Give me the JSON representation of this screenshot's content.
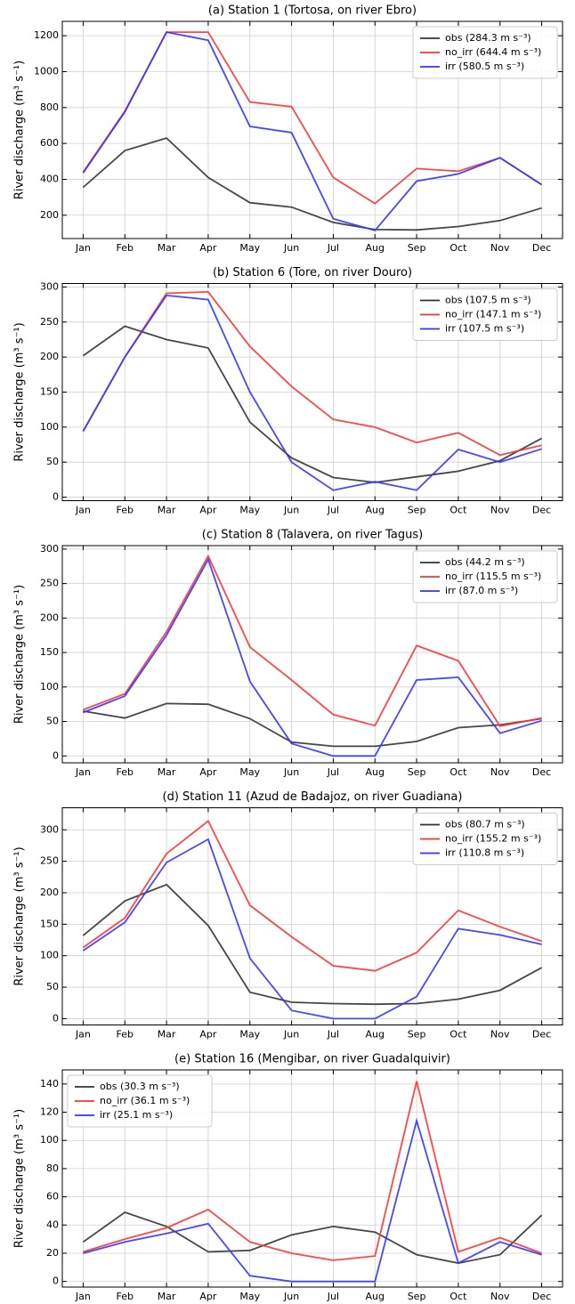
{
  "chart_data": [
    {
      "type": "line",
      "title": "(a) Station 1 (Tortosa, on river Ebro)",
      "y_label": "River discharge (m³ s⁻¹)",
      "categories": [
        "Jan",
        "Feb",
        "Mar",
        "Apr",
        "May",
        "Jun",
        "Jul",
        "Aug",
        "Sep",
        "Oct",
        "Nov",
        "Dec"
      ],
      "series": [
        {
          "name": "obs (284.3 m s⁻³)",
          "color": "#333333",
          "values": [
            355,
            560,
            630,
            410,
            270,
            245,
            160,
            120,
            118,
            137,
            170,
            240
          ]
        },
        {
          "name": "no_irr (644.4 m s⁻³)",
          "color": "#ff3333",
          "values": [
            440,
            780,
            1220,
            1220,
            830,
            805,
            410,
            265,
            460,
            445,
            520,
            370
          ]
        },
        {
          "name": "irr (580.5 m s⁻³)",
          "color": "#3333ff",
          "values": [
            435,
            775,
            1220,
            1175,
            695,
            660,
            180,
            115,
            390,
            430,
            520,
            370
          ]
        }
      ],
      "ylim": [
        70,
        1280
      ],
      "yticks": [
        200,
        400,
        600,
        800,
        1000,
        1200
      ],
      "grid": true,
      "legend": "upper right"
    },
    {
      "type": "line",
      "title": "(b) Station 6 (Tore, on river Douro)",
      "y_label": "River discharge (m³ s⁻¹)",
      "categories": [
        "Jan",
        "Feb",
        "Mar",
        "Apr",
        "May",
        "Jun",
        "Jul",
        "Aug",
        "Sep",
        "Oct",
        "Nov",
        "Dec"
      ],
      "series": [
        {
          "name": "obs (107.5 m s⁻³)",
          "color": "#333333",
          "values": [
            202,
            244,
            225,
            213,
            107,
            56,
            28,
            21,
            29,
            37,
            52,
            84
          ]
        },
        {
          "name": "no_irr (147.1 m s⁻³)",
          "color": "#ff3333",
          "values": [
            94,
            200,
            291,
            293,
            215,
            158,
            111,
            100,
            78,
            92,
            60,
            74
          ]
        },
        {
          "name": "irr (107.5 m s⁻³)",
          "color": "#3333ff",
          "values": [
            94,
            200,
            288,
            282,
            150,
            50,
            10,
            22,
            10,
            68,
            50,
            69
          ]
        }
      ],
      "ylim": [
        -5,
        305
      ],
      "yticks": [
        0,
        50,
        100,
        150,
        200,
        250,
        300
      ],
      "grid": true,
      "legend": "upper right"
    },
    {
      "type": "line",
      "title": "(c) Station 8 (Talavera, on river Tagus)",
      "y_label": "River discharge (m³ s⁻¹)",
      "categories": [
        "Jan",
        "Feb",
        "Mar",
        "Apr",
        "May",
        "Jun",
        "Jul",
        "Aug",
        "Sep",
        "Oct",
        "Nov",
        "Dec"
      ],
      "series": [
        {
          "name": "obs (44.2 m s⁻³)",
          "color": "#333333",
          "values": [
            65,
            55,
            76,
            75,
            54,
            20,
            14,
            14,
            21,
            41,
            45,
            54
          ]
        },
        {
          "name": "no_irr (115.5 m s⁻³)",
          "color": "#ff3333",
          "values": [
            67,
            90,
            180,
            290,
            158,
            110,
            60,
            44,
            160,
            138,
            43,
            55
          ]
        },
        {
          "name": "irr (87.0 m s⁻³)",
          "color": "#3333ff",
          "values": [
            63,
            87,
            175,
            285,
            108,
            18,
            0,
            0,
            110,
            114,
            33,
            51
          ]
        }
      ],
      "ylim": [
        -10,
        305
      ],
      "yticks": [
        0,
        50,
        100,
        150,
        200,
        250,
        300
      ],
      "grid": true,
      "legend": "upper right"
    },
    {
      "type": "line",
      "title": "(d) Station 11 (Azud de Badajoz, on river Guadiana)",
      "y_label": "River discharge (m³ s⁻¹)",
      "categories": [
        "Jan",
        "Feb",
        "Mar",
        "Apr",
        "May",
        "Jun",
        "Jul",
        "Aug",
        "Sep",
        "Oct",
        "Nov",
        "Dec"
      ],
      "series": [
        {
          "name": "obs (80.7 m s⁻³)",
          "color": "#333333",
          "values": [
            132,
            187,
            213,
            148,
            42,
            26,
            24,
            23,
            24,
            31,
            45,
            81
          ]
        },
        {
          "name": "no_irr (155.2 m s⁻³)",
          "color": "#ff3333",
          "values": [
            113,
            160,
            262,
            314,
            180,
            130,
            84,
            76,
            105,
            172,
            146,
            123
          ]
        },
        {
          "name": "irr (110.8 m s⁻³)",
          "color": "#3333ff",
          "values": [
            108,
            153,
            248,
            285,
            96,
            13,
            0,
            0,
            35,
            143,
            133,
            118
          ]
        }
      ],
      "ylim": [
        -10,
        335
      ],
      "yticks": [
        0,
        50,
        100,
        150,
        200,
        250,
        300
      ],
      "grid": true,
      "legend": "upper right"
    },
    {
      "type": "line",
      "title": "(e) Station 16 (Mengibar, on river Guadalquivir)",
      "y_label": "River discharge (m³ s⁻¹)",
      "categories": [
        "Jan",
        "Feb",
        "Mar",
        "Apr",
        "May",
        "Jun",
        "Jul",
        "Aug",
        "Sep",
        "Oct",
        "Nov",
        "Dec"
      ],
      "series": [
        {
          "name": "obs (30.3 m s⁻³)",
          "color": "#333333",
          "values": [
            28,
            49,
            39,
            21,
            22,
            33,
            39,
            35,
            19,
            13,
            19,
            47
          ]
        },
        {
          "name": "no_irr (36.1 m s⁻³)",
          "color": "#ff3333",
          "values": [
            21,
            30,
            38,
            51,
            28,
            20,
            15,
            18,
            142,
            21,
            31,
            20
          ]
        },
        {
          "name": "irr (25.1 m s⁻³)",
          "color": "#3333ff",
          "values": [
            20,
            28,
            34,
            41,
            4,
            0,
            0,
            0,
            114,
            13,
            28,
            19
          ]
        }
      ],
      "ylim": [
        -4,
        150
      ],
      "yticks": [
        0,
        20,
        40,
        60,
        80,
        100,
        120,
        140
      ],
      "grid": true,
      "legend": "upper left"
    }
  ]
}
